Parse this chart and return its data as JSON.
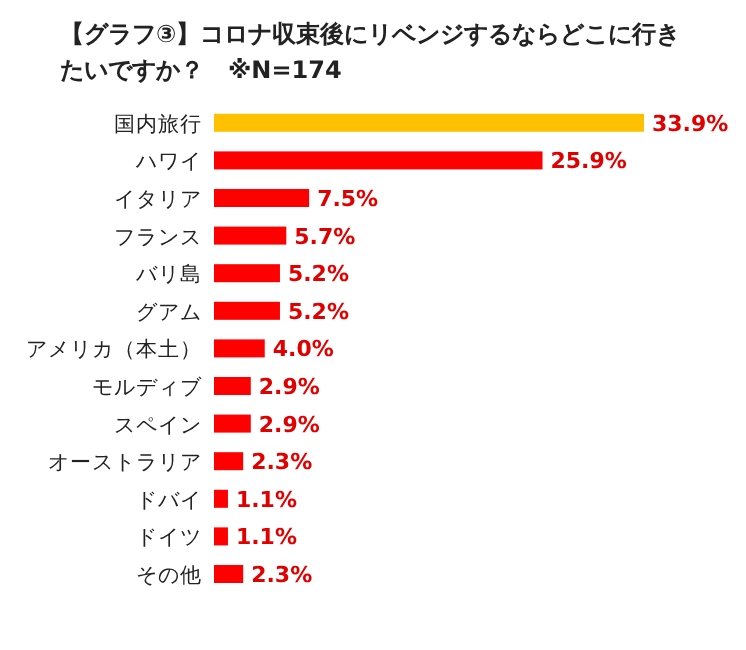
{
  "chart_data": {
    "type": "bar",
    "orientation": "horizontal",
    "title": "【グラフ③】コロナ収束後にリベンジするならどこに行きたいですか？　※N=174",
    "categories": [
      "国内旅行",
      "ハワイ",
      "イタリア",
      "フランス",
      "バリ島",
      "グアム",
      "アメリカ（本土）",
      "モルディブ",
      "スペイン",
      "オーストラリア",
      "ドバイ",
      "ドイツ",
      "その他"
    ],
    "values": [
      33.9,
      25.9,
      7.5,
      5.7,
      5.2,
      5.2,
      4.0,
      2.9,
      2.9,
      2.3,
      1.1,
      1.1,
      2.3
    ],
    "colors": [
      "#ffc000",
      "#ff0000",
      "#ff0000",
      "#ff0000",
      "#ff0000",
      "#ff0000",
      "#ff0000",
      "#ff0000",
      "#ff0000",
      "#ff0000",
      "#ff0000",
      "#ff0000",
      "#ff0000"
    ],
    "value_labels": [
      "33.9%",
      "25.9%",
      "7.5%",
      "5.7%",
      "5.2%",
      "5.2%",
      "4.0%",
      "2.9%",
      "2.9%",
      "2.3%",
      "1.1%",
      "1.1%",
      "2.3%"
    ]
  }
}
